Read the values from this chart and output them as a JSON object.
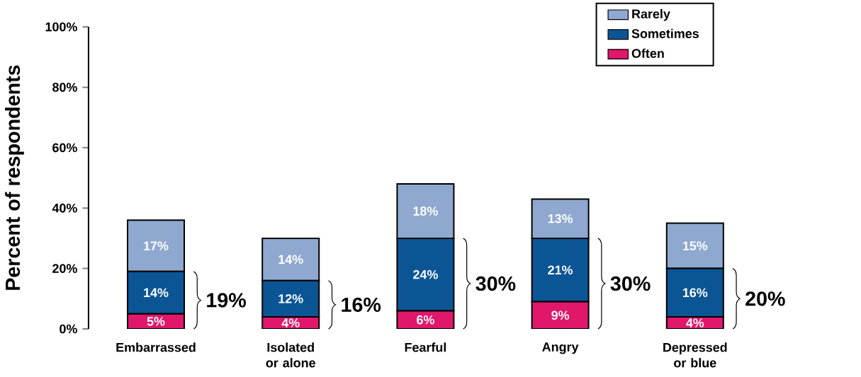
{
  "chart_data": {
    "type": "bar",
    "stacked": true,
    "ylabel": "Percent of respondents",
    "categories": [
      "Embarrassed",
      "Isolated or alone",
      "Fearful",
      "Angry",
      "Depressed or blue"
    ],
    "series": [
      {
        "name": "Often",
        "color": "#e0176a",
        "values": [
          5,
          4,
          6,
          9,
          4
        ],
        "value_labels": [
          "5%",
          "4%",
          "6%",
          "9%",
          "4%"
        ]
      },
      {
        "name": "Sometimes",
        "color": "#0b5595",
        "values": [
          14,
          12,
          24,
          21,
          16
        ],
        "value_labels": [
          "14%",
          "12%",
          "24%",
          "21%",
          "16%"
        ]
      },
      {
        "name": "Rarely",
        "color": "#8fa8d0",
        "values": [
          17,
          14,
          18,
          13,
          15
        ],
        "value_labels": [
          "17%",
          "14%",
          "18%",
          "13%",
          "15%"
        ]
      }
    ],
    "ylim": [
      0,
      100
    ],
    "yticks": [
      {
        "value": 0,
        "label": "0%"
      },
      {
        "value": 20,
        "label": "20%"
      },
      {
        "value": 40,
        "label": "40%"
      },
      {
        "value": 60,
        "label": "60%"
      },
      {
        "value": 80,
        "label": "80%"
      },
      {
        "value": 100,
        "label": "100%"
      }
    ],
    "annotations": [
      "19%",
      "16%",
      "30%",
      "30%",
      "20%"
    ],
    "legend": "top right",
    "grid": false
  }
}
